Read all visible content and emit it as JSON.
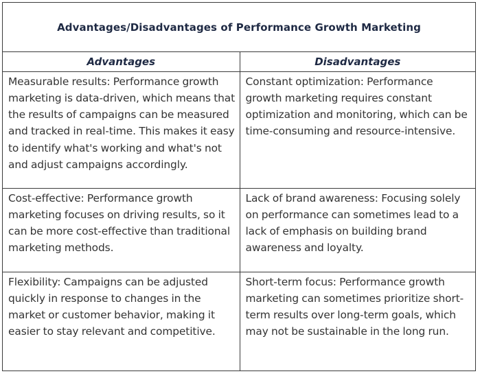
{
  "title": "Advantages/Disadvantages of Performance Growth Marketing",
  "headers": [
    "Advantages",
    "Disadvantages"
  ],
  "rows": [
    {
      "advantage": "Measurable results: Performance growth marketing is data-driven, which means that the results of campaigns can be measured and tracked in real-time. This makes it easy to identify what's working and what's not and adjust campaigns accordingly.",
      "disadvantage": "Constant optimization: Performance growth marketing requires constant optimization and monitoring, which can be time-consuming and resource-intensive."
    },
    {
      "advantage": "Cost-effective: Performance growth marketing focuses on driving results, so it can be more cost-effective than traditional marketing methods.",
      "disadvantage": "Lack of brand awareness: Focusing solely on performance can sometimes lead to a lack of emphasis on building brand awareness and loyalty."
    },
    {
      "advantage": "Flexibility: Campaigns can be adjusted quickly in response to changes in the market or customer behavior, making it easier to stay relevant and competitive.",
      "disadvantage": "Short-term focus: Performance growth marketing can sometimes prioritize short-term results over long-term goals, which may not be sustainable in the long run."
    }
  ]
}
